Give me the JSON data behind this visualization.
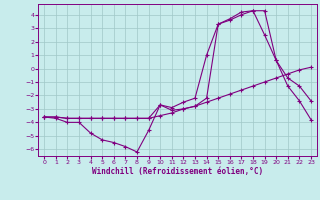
{
  "xlabel": "Windchill (Refroidissement éolien,°C)",
  "bg_color": "#c8ecec",
  "line_color": "#800080",
  "grid_color": "#a0c8c8",
  "xlim": [
    -0.5,
    23.5
  ],
  "ylim": [
    -6.5,
    4.8
  ],
  "yticks": [
    -6,
    -5,
    -4,
    -3,
    -2,
    -1,
    0,
    1,
    2,
    3,
    4
  ],
  "xticks": [
    0,
    1,
    2,
    3,
    4,
    5,
    6,
    7,
    8,
    9,
    10,
    11,
    12,
    13,
    14,
    15,
    16,
    17,
    18,
    19,
    20,
    21,
    22,
    23
  ],
  "line1_x": [
    0,
    1,
    2,
    3,
    4,
    5,
    6,
    7,
    8,
    9,
    10,
    11,
    12,
    13,
    14,
    15,
    16,
    17,
    18,
    19,
    20,
    21,
    22,
    23
  ],
  "line1_y": [
    -3.6,
    -3.7,
    -4.0,
    -4.0,
    -4.8,
    -5.3,
    -5.5,
    -5.8,
    -6.2,
    -4.6,
    -2.7,
    -3.1,
    -3.0,
    -2.8,
    -2.2,
    3.3,
    3.6,
    4.0,
    4.3,
    4.3,
    0.6,
    -1.3,
    -2.4,
    -3.8
  ],
  "line2_x": [
    0,
    1,
    2,
    3,
    4,
    5,
    6,
    7,
    8,
    9,
    10,
    11,
    12,
    13,
    14,
    15,
    16,
    17,
    18,
    19,
    20,
    21,
    22,
    23
  ],
  "line2_y": [
    -3.6,
    -3.6,
    -3.7,
    -3.7,
    -3.7,
    -3.7,
    -3.7,
    -3.7,
    -3.7,
    -3.7,
    -3.5,
    -3.3,
    -3.0,
    -2.8,
    -2.5,
    -2.2,
    -1.9,
    -1.6,
    -1.3,
    -1.0,
    -0.7,
    -0.4,
    -0.1,
    0.1
  ],
  "line3_x": [
    0,
    1,
    2,
    3,
    4,
    5,
    6,
    7,
    8,
    9,
    10,
    11,
    12,
    13,
    14,
    15,
    16,
    17,
    18,
    19,
    20,
    21,
    22,
    23
  ],
  "line3_y": [
    -3.6,
    -3.6,
    -3.7,
    -3.7,
    -3.7,
    -3.7,
    -3.7,
    -3.7,
    -3.7,
    -3.7,
    -2.7,
    -2.9,
    -2.5,
    -2.2,
    1.0,
    3.3,
    3.7,
    4.2,
    4.3,
    2.5,
    0.6,
    -0.7,
    -1.3,
    -2.4
  ]
}
